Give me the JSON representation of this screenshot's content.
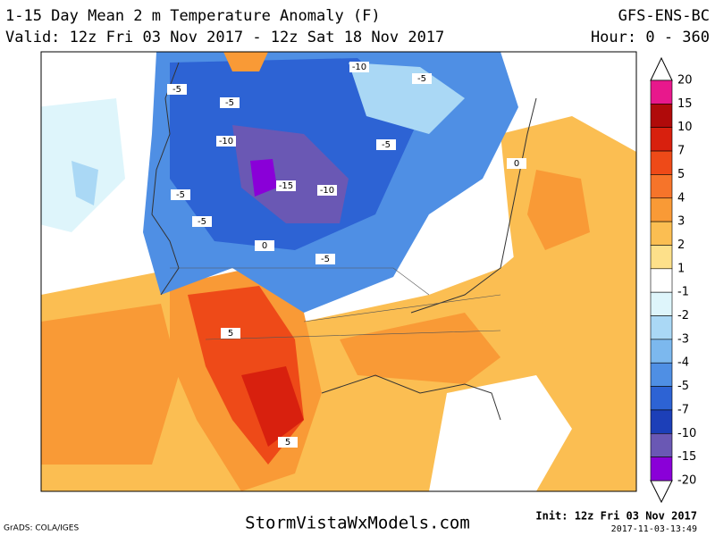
{
  "header": {
    "title": "1-15 Day Mean 2 m Temperature Anomaly (F)",
    "model": "GFS-ENS-BC",
    "valid": "Valid: 12z Fri 03 Nov 2017 - 12z Sat 18 Nov 2017",
    "hour": "Hour: 0 - 360"
  },
  "colorbar": {
    "levels": [
      20,
      15,
      10,
      7,
      5,
      4,
      3,
      2,
      1,
      -1,
      -2,
      -3,
      -4,
      -5,
      -7,
      -10,
      -15,
      -20
    ],
    "colors": [
      "#e8188c",
      "#b00a0a",
      "#d8200e",
      "#ee4a18",
      "#f6742a",
      "#f99a36",
      "#fbbe52",
      "#fde08a",
      "#ffffff",
      "#def5fb",
      "#aad8f5",
      "#7cb8ee",
      "#4f8fe4",
      "#2d63d4",
      "#1c3fb8",
      "#6a58b4",
      "#8a00d8"
    ]
  },
  "map": {
    "labels": [
      "-5",
      "-5",
      "-10",
      "-5",
      "-10",
      "-5",
      "-15",
      "-10",
      "-5",
      "-5",
      "0",
      "-5",
      "5",
      "5",
      "0"
    ]
  },
  "footer": {
    "credit": "GrADS: COLA/IGES",
    "site": "StormVistaWxModels.com",
    "init": "Init: 12z Fri 03 Nov 2017",
    "stamp": "2017-11-03-13:49"
  }
}
